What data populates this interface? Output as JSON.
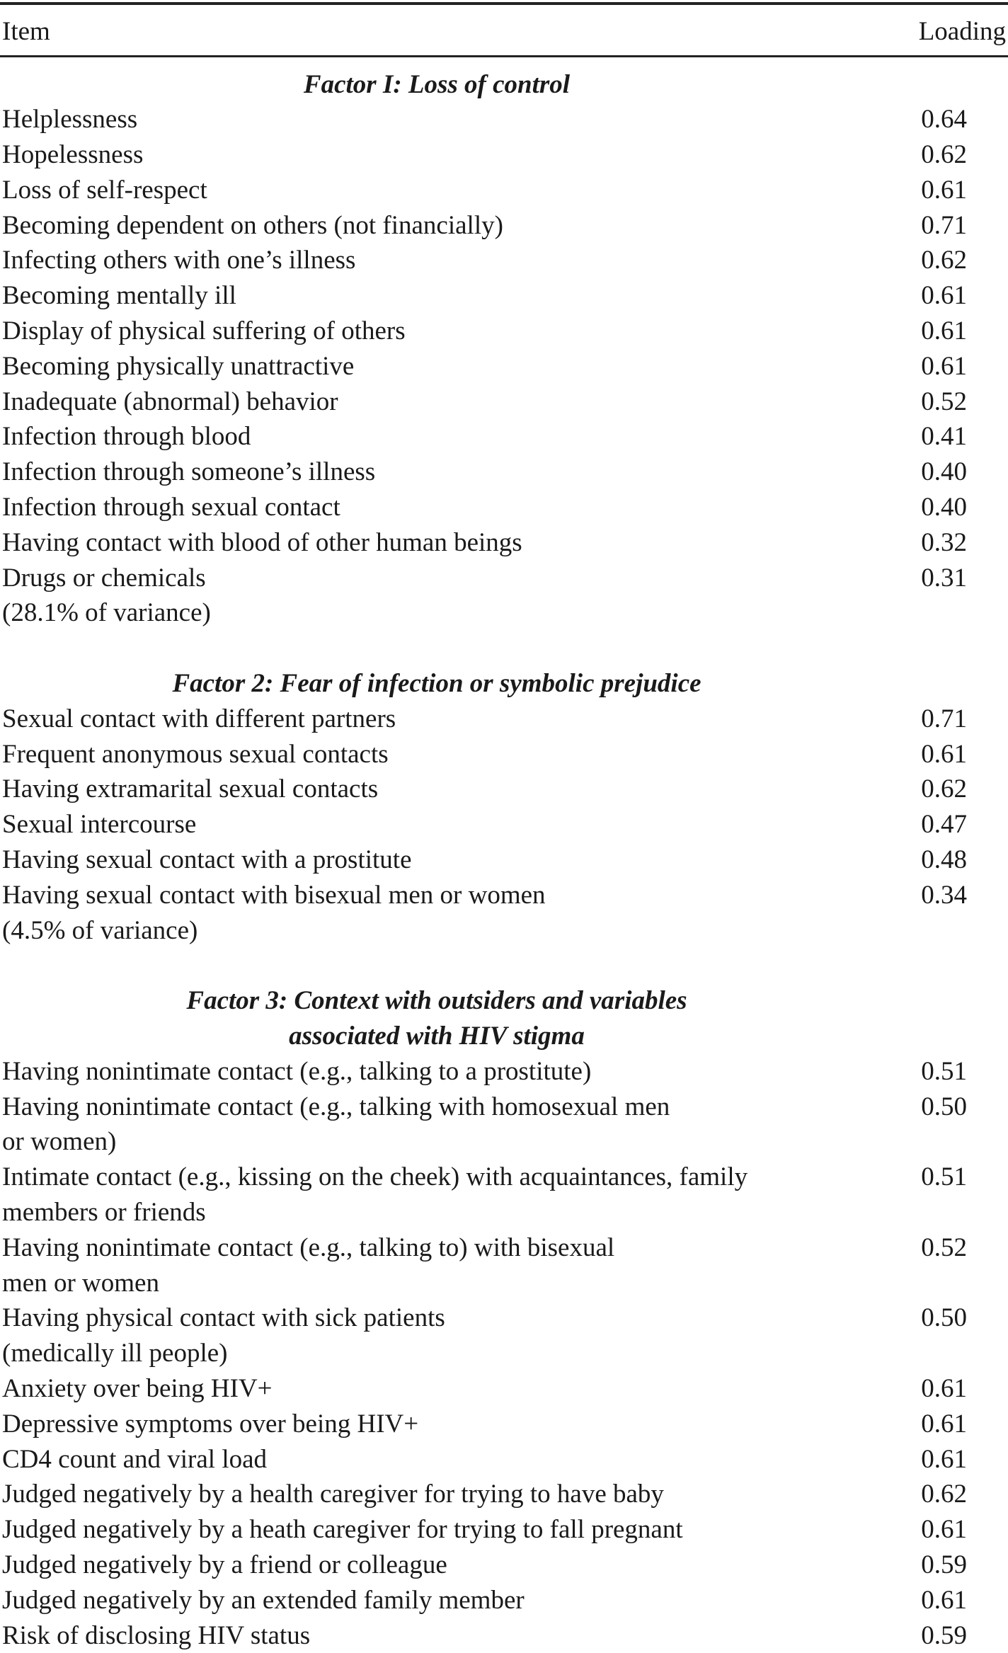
{
  "header": {
    "item": "Item",
    "loading": "Loading"
  },
  "rows": [
    {
      "type": "heading",
      "lines": [
        "Factor I: Loss of control"
      ]
    },
    {
      "type": "item",
      "lines": [
        "Helplessness"
      ],
      "loading": "0.64"
    },
    {
      "type": "item",
      "lines": [
        "Hopelessness"
      ],
      "loading": "0.62"
    },
    {
      "type": "item",
      "lines": [
        "Loss of self-respect"
      ],
      "loading": "0.61"
    },
    {
      "type": "item",
      "lines": [
        "Becoming dependent on others (not financially)"
      ],
      "loading": "0.71"
    },
    {
      "type": "item",
      "lines": [
        "Infecting others with one’s illness"
      ],
      "loading": "0.62"
    },
    {
      "type": "item",
      "lines": [
        "Becoming mentally ill"
      ],
      "loading": "0.61"
    },
    {
      "type": "item",
      "lines": [
        "Display of physical suffering of others"
      ],
      "loading": "0.61"
    },
    {
      "type": "item",
      "lines": [
        "Becoming physically unattractive"
      ],
      "loading": "0.61"
    },
    {
      "type": "item",
      "lines": [
        "Inadequate (abnormal) behavior"
      ],
      "loading": "0.52"
    },
    {
      "type": "item",
      "lines": [
        "Infection through blood"
      ],
      "loading": "0.41"
    },
    {
      "type": "item",
      "lines": [
        "Infection through someone’s illness"
      ],
      "loading": "0.40"
    },
    {
      "type": "item",
      "lines": [
        "Infection through sexual contact"
      ],
      "loading": "0.40"
    },
    {
      "type": "item",
      "lines": [
        "Having contact with blood of other human beings"
      ],
      "loading": "0.32"
    },
    {
      "type": "item",
      "lines": [
        "Drugs or chemicals"
      ],
      "loading": "0.31"
    },
    {
      "type": "note",
      "lines": [
        "(28.1% of variance)"
      ]
    },
    {
      "type": "blank"
    },
    {
      "type": "heading",
      "lines": [
        "Factor 2: Fear of infection or symbolic prejudice"
      ]
    },
    {
      "type": "item",
      "lines": [
        "Sexual contact with different partners"
      ],
      "loading": "0.71"
    },
    {
      "type": "item",
      "lines": [
        "Frequent anonymous sexual contacts"
      ],
      "loading": "0.61"
    },
    {
      "type": "item",
      "lines": [
        "Having extramarital sexual contacts"
      ],
      "loading": "0.62"
    },
    {
      "type": "item",
      "lines": [
        "Sexual intercourse"
      ],
      "loading": "0.47"
    },
    {
      "type": "item",
      "lines": [
        "Having sexual contact with a prostitute"
      ],
      "loading": "0.48"
    },
    {
      "type": "item",
      "lines": [
        "Having sexual contact with bisexual men or women"
      ],
      "loading": "0.34"
    },
    {
      "type": "note",
      "lines": [
        "(4.5% of variance)"
      ]
    },
    {
      "type": "blank"
    },
    {
      "type": "heading",
      "lines": [
        "Factor 3: Context with outsiders and variables",
        "associated with HIV stigma"
      ]
    },
    {
      "type": "item",
      "lines": [
        "Having nonintimate contact (e.g., talking to a prostitute)"
      ],
      "loading": "0.51"
    },
    {
      "type": "item",
      "lines": [
        "Having nonintimate contact (e.g., talking with homosexual men",
        "or women)"
      ],
      "loading": "0.50"
    },
    {
      "type": "item",
      "lines": [
        "Intimate contact (e.g., kissing on the cheek) with acquaintances, family",
        "members or friends"
      ],
      "loading": "0.51"
    },
    {
      "type": "item",
      "lines": [
        "Having nonintimate contact (e.g., talking to) with bisexual",
        "men or women"
      ],
      "loading": "0.52"
    },
    {
      "type": "item",
      "lines": [
        "Having physical contact with sick patients",
        "(medically ill people)"
      ],
      "loading": "0.50"
    },
    {
      "type": "item",
      "lines": [
        "Anxiety over being HIV+"
      ],
      "loading": "0.61"
    },
    {
      "type": "item",
      "lines": [
        "Depressive symptoms over being HIV+"
      ],
      "loading": "0.61"
    },
    {
      "type": "item",
      "lines": [
        "CD4 count and viral load"
      ],
      "loading": "0.61"
    },
    {
      "type": "item",
      "lines": [
        "Judged negatively by a health caregiver for trying to have baby"
      ],
      "loading": "0.62"
    },
    {
      "type": "item",
      "lines": [
        "Judged negatively by a heath caregiver for trying to fall pregnant"
      ],
      "loading": "0.61"
    },
    {
      "type": "item",
      "lines": [
        "Judged negatively by a friend or colleague"
      ],
      "loading": "0.59"
    },
    {
      "type": "item",
      "lines": [
        "Judged negatively by an extended family member"
      ],
      "loading": "0.61"
    },
    {
      "type": "item",
      "lines": [
        "Risk of disclosing HIV status"
      ],
      "loading": "0.59"
    }
  ]
}
